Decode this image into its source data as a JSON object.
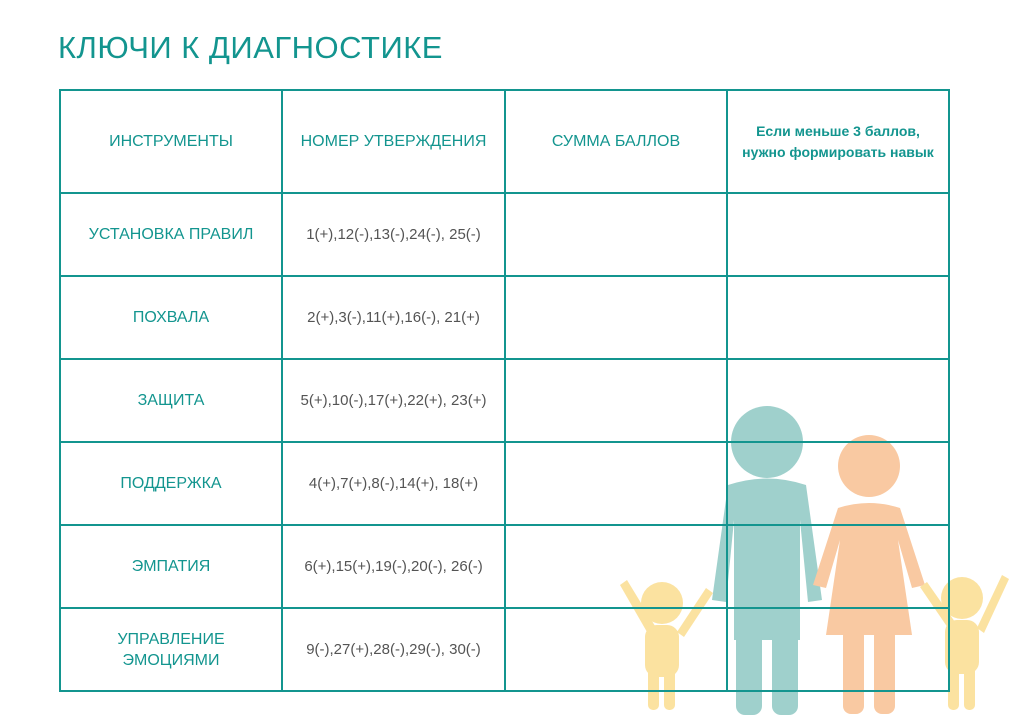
{
  "title": "КЛЮЧИ К ДИАГНОСТИКЕ",
  "table": {
    "headers": [
      "ИНСТРУМЕНТЫ",
      "НОМЕР УТВЕРЖДЕНИЯ",
      "СУММА БАЛЛОВ",
      "Если меньше 3 баллов, нужно формировать навык"
    ],
    "rows": [
      {
        "tool": "УСТАНОВКА ПРАВИЛ",
        "numbers": "1(+),12(-),13(-),24(-), 25(-)",
        "sum": "",
        "note": ""
      },
      {
        "tool": "ПОХВАЛА",
        "numbers": "2(+),3(-),11(+),16(-), 21(+)",
        "sum": "",
        "note": ""
      },
      {
        "tool": "ЗАЩИТА",
        "numbers": "5(+),10(-),17(+),22(+), 23(+)",
        "sum": "",
        "note": ""
      },
      {
        "tool": "ПОДДЕРЖКА",
        "numbers": "4(+),7(+),8(-),14(+), 18(+)",
        "sum": "",
        "note": ""
      },
      {
        "tool": "ЭМПАТИЯ",
        "numbers": "6(+),15(+),19(-),20(-), 26(-)",
        "sum": "",
        "note": ""
      },
      {
        "tool": "УПРАВЛЕНИЕ ЭМОЦИЯМИ",
        "numbers": "9(-),27(+),28(-),29(-), 30(-)",
        "sum": "",
        "note": ""
      }
    ]
  },
  "colors": {
    "accent": "#13958f",
    "father": "#9fd0cc",
    "mother": "#f9c9a2",
    "child": "#fbe2a0"
  },
  "illustration": "family-silhouette"
}
